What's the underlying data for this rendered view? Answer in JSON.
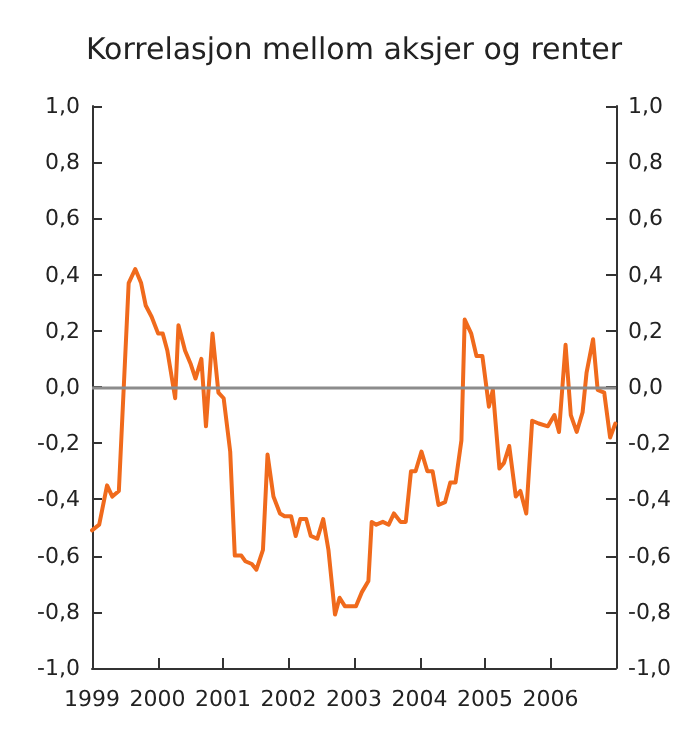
{
  "chart_data": {
    "type": "line",
    "title": "Korrelasjon mellom aksjer og renter",
    "x": [
      1999.0,
      1999.11,
      1999.23,
      1999.31,
      1999.41,
      1999.56,
      1999.66,
      1999.75,
      1999.82,
      1999.91,
      2000.01,
      2000.08,
      2000.15,
      2000.27,
      2000.32,
      2000.42,
      2000.51,
      2000.58,
      2000.67,
      2000.74,
      2000.84,
      2000.93,
      2001.01,
      2001.11,
      2001.18,
      2001.28,
      2001.34,
      2001.44,
      2001.51,
      2001.61,
      2001.68,
      2001.77,
      2001.87,
      2001.94,
      2002.04,
      2002.11,
      2002.18,
      2002.27,
      2002.34,
      2002.44,
      2002.53,
      2002.61,
      2002.71,
      2002.78,
      2002.86,
      2003.03,
      2003.12,
      2003.22,
      2003.27,
      2003.34,
      2003.44,
      2003.53,
      2003.61,
      2003.71,
      2003.79,
      2003.87,
      2003.94,
      2004.03,
      2004.12,
      2004.2,
      2004.29,
      2004.39,
      2004.47,
      2004.55,
      2004.64,
      2004.69,
      2004.79,
      2004.87,
      2004.96,
      2005.06,
      2005.12,
      2005.22,
      2005.29,
      2005.37,
      2005.47,
      2005.54,
      2005.63,
      2005.72,
      2005.82,
      2005.96,
      2006.06,
      2006.13,
      2006.23,
      2006.31,
      2006.4,
      2006.49,
      2006.55,
      2006.65,
      2006.72,
      2006.82,
      2006.91,
      2006.99
    ],
    "series": [
      {
        "color": "#f06a1c",
        "values": [
          -0.51,
          -0.49,
          -0.35,
          -0.39,
          -0.37,
          0.37,
          0.42,
          0.37,
          0.29,
          0.25,
          0.19,
          0.19,
          0.13,
          -0.04,
          0.22,
          0.13,
          0.08,
          0.03,
          0.1,
          -0.14,
          0.19,
          -0.02,
          -0.04,
          -0.23,
          -0.6,
          -0.6,
          -0.62,
          -0.63,
          -0.65,
          -0.58,
          -0.24,
          -0.39,
          -0.45,
          -0.46,
          -0.46,
          -0.53,
          -0.47,
          -0.47,
          -0.53,
          -0.54,
          -0.47,
          -0.58,
          -0.81,
          -0.75,
          -0.78,
          -0.78,
          -0.73,
          -0.69,
          -0.48,
          -0.49,
          -0.48,
          -0.49,
          -0.45,
          -0.48,
          -0.48,
          -0.3,
          -0.3,
          -0.23,
          -0.3,
          -0.3,
          -0.42,
          -0.41,
          -0.34,
          -0.34,
          -0.19,
          0.24,
          0.19,
          0.11,
          0.11,
          -0.07,
          -0.01,
          -0.29,
          -0.27,
          -0.21,
          -0.39,
          -0.37,
          -0.45,
          -0.12,
          -0.13,
          -0.14,
          -0.1,
          -0.16,
          0.15,
          -0.1,
          -0.16,
          -0.09,
          0.05,
          0.17,
          -0.01,
          -0.02,
          -0.18,
          -0.13
        ]
      }
    ],
    "xlim": [
      1999,
      2007
    ],
    "xticks": [
      1999,
      2000,
      2001,
      2002,
      2003,
      2004,
      2005,
      2006
    ],
    "ylim": [
      -1,
      1
    ],
    "yticks": [
      {
        "value": -1,
        "label": "-1,0"
      },
      {
        "value": -0.8,
        "label": "-0,8"
      },
      {
        "value": -0.6,
        "label": "-0,6"
      },
      {
        "value": -0.4,
        "label": "-0,4"
      },
      {
        "value": -0.2,
        "label": "-0,2"
      },
      {
        "value": 0,
        "label": "0,0"
      },
      {
        "value": 0.2,
        "label": "0,2"
      },
      {
        "value": 0.4,
        "label": "0,4"
      },
      {
        "value": 0.6,
        "label": "0,6"
      },
      {
        "value": 0.8,
        "label": "0,8"
      },
      {
        "value": 1,
        "label": "1,0"
      }
    ],
    "y2lim": [
      -1,
      1
    ],
    "y2ticks": [
      {
        "value": -1,
        "label": "-1,0"
      },
      {
        "value": -0.8,
        "label": "-0,8"
      },
      {
        "value": -0.6,
        "label": "-0,6"
      },
      {
        "value": -0.4,
        "label": "-0,4"
      },
      {
        "value": -0.2,
        "label": "-0,2"
      },
      {
        "value": 0,
        "label": "0,0"
      },
      {
        "value": 0.2,
        "label": "0,2"
      },
      {
        "value": 0.4,
        "label": "0,4"
      },
      {
        "value": 0.6,
        "label": "0,6"
      },
      {
        "value": 0.8,
        "label": "0,8"
      },
      {
        "value": 1,
        "label": "1,0"
      }
    ],
    "ref_lines": [
      {
        "axis": "y",
        "value": 0,
        "color": "#8c8c8c"
      }
    ],
    "grid": false,
    "marker": "none",
    "line_style": "solid"
  }
}
